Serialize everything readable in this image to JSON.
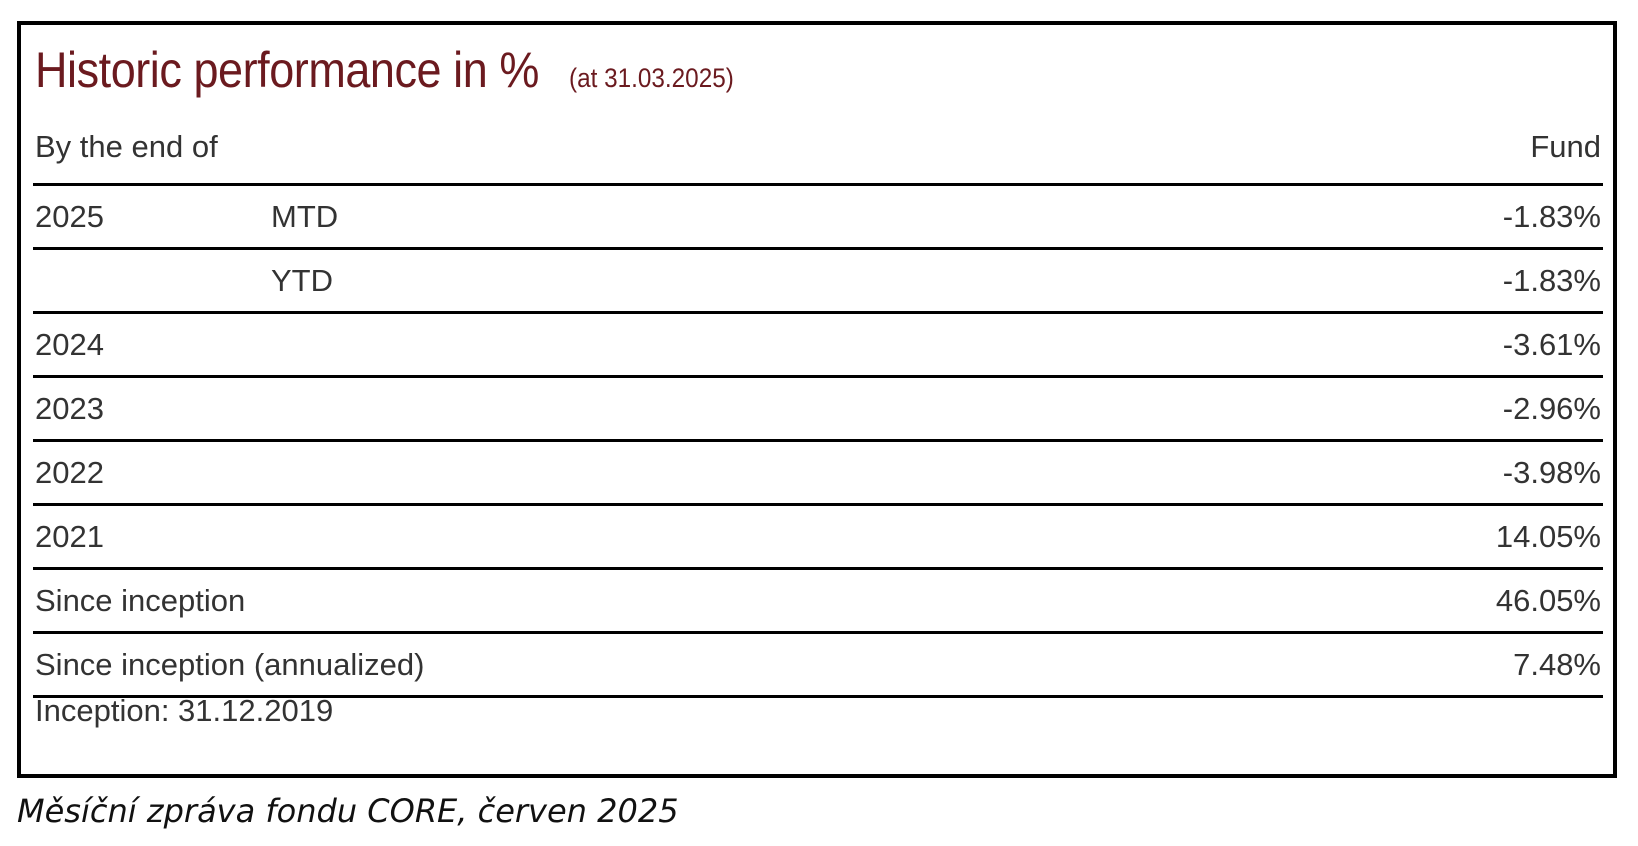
{
  "title": {
    "main": "Historic performance in %",
    "sub": "(at 31.03.2025)"
  },
  "header": {
    "left": "By the end of",
    "right": "Fund"
  },
  "rows": [
    {
      "year": "2025",
      "period": "MTD",
      "value": "-1.83%"
    },
    {
      "year": "",
      "period": "YTD",
      "value": "-1.83%"
    },
    {
      "year": "2024",
      "period": "",
      "value": "-3.61%"
    },
    {
      "year": "2023",
      "period": "",
      "value": "-2.96%"
    },
    {
      "year": "2022",
      "period": "",
      "value": "-3.98%"
    },
    {
      "year": "2021",
      "period": "",
      "value": "14.05%"
    },
    {
      "year": "Since inception",
      "period": "",
      "value": "46.05%"
    },
    {
      "year": "Since inception (annualized)",
      "period": "",
      "value": "7.48%"
    }
  ],
  "footer": {
    "inception": "Inception: 31.12.2019"
  },
  "caption": "Měsíční zpráva fondu CORE, červen 2025",
  "colors": {
    "title": "#6b1a1f",
    "text": "#333333",
    "border": "#000000"
  }
}
